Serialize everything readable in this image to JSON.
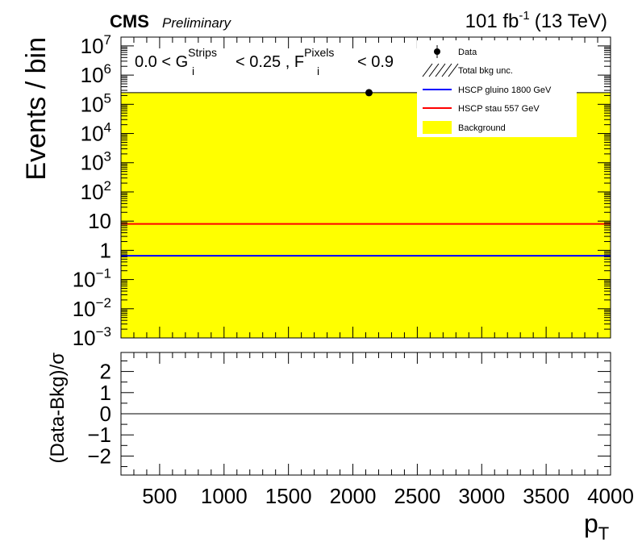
{
  "header": {
    "experiment": "CMS",
    "status": "Preliminary",
    "lumi_value": "101 fb",
    "lumi_exp": "-1",
    "energy": "(13 TeV)"
  },
  "annotation": {
    "g_prefix": "0.0 < G",
    "g_sup": "Strips",
    "g_sub": "i",
    "mid": "< 0.25 , F",
    "f_sup": "Pixels",
    "f_sub": "i",
    "suffix": "< 0.9"
  },
  "chart_data": [
    {
      "type": "line",
      "panel": "main",
      "xlabel": "p",
      "xlabel_sub": "T",
      "ylabel": "Events / bin",
      "xlim": [
        200,
        4000
      ],
      "ylim": [
        0.001,
        20000000
      ],
      "yscale": "log",
      "x_ticks": [
        "500",
        "1000",
        "1500",
        "2000",
        "2500",
        "3000",
        "3500",
        "4000"
      ],
      "x_tick_values": [
        500,
        1000,
        1500,
        2000,
        2500,
        3000,
        3500,
        4000
      ],
      "y_ticks": [
        {
          "exp": 7,
          "base": "10",
          "sup": "7"
        },
        {
          "exp": 6,
          "base": "10",
          "sup": "6"
        },
        {
          "exp": 5,
          "base": "10",
          "sup": "5"
        },
        {
          "exp": 4,
          "base": "10",
          "sup": "4"
        },
        {
          "exp": 3,
          "base": "10",
          "sup": "3"
        },
        {
          "exp": 2,
          "base": "10",
          "sup": "2"
        },
        {
          "exp": 1,
          "base": "10",
          "sup": ""
        },
        {
          "exp": 0,
          "base": "1",
          "sup": ""
        },
        {
          "exp": -1,
          "base": "10",
          "sup": "−1"
        },
        {
          "exp": -2,
          "base": "10",
          "sup": "−2"
        },
        {
          "exp": -3,
          "base": "10",
          "sup": "−3"
        }
      ],
      "series": [
        {
          "name": "Background",
          "kind": "fill",
          "color": "#ffff00",
          "x": [
            200,
            4000
          ],
          "y": [
            250000,
            250000
          ]
        },
        {
          "name": "HSCP stau 557 GeV",
          "kind": "line",
          "color": "#ff0000",
          "x": [
            200,
            4000
          ],
          "y": [
            8,
            8
          ]
        },
        {
          "name": "HSCP gluino 1800 GeV",
          "kind": "line",
          "color": "#0000ff",
          "x": [
            200,
            4000
          ],
          "y": [
            0.65,
            0.65
          ]
        },
        {
          "name": "Data",
          "kind": "points",
          "color": "#000000",
          "x": [
            2125
          ],
          "y": [
            250000
          ]
        }
      ],
      "legend": {
        "position": "top-right",
        "entries": [
          {
            "label": "Data",
            "style": "marker"
          },
          {
            "label": "Total bkg unc.",
            "style": "hatch"
          },
          {
            "label": "HSCP gluino 1800 GeV",
            "style": "line",
            "color": "#0000ff"
          },
          {
            "label": "HSCP stau 557 GeV",
            "style": "line",
            "color": "#ff0000"
          },
          {
            "label": "Background",
            "style": "fill",
            "color": "#ffff00"
          }
        ]
      }
    },
    {
      "type": "line",
      "panel": "ratio",
      "ylabel": "(Data-Bkg)/σ",
      "xlim": [
        200,
        4000
      ],
      "ylim": [
        -2.9,
        2.9
      ],
      "y_ticks": [
        "2",
        "1",
        "0",
        "−1",
        "−2"
      ],
      "y_tick_values": [
        2,
        1,
        0,
        -1,
        -2
      ],
      "series": [
        {
          "name": "",
          "kind": "line",
          "color": "#000000",
          "x": [
            200,
            4000
          ],
          "y": [
            0,
            0
          ]
        }
      ]
    }
  ]
}
